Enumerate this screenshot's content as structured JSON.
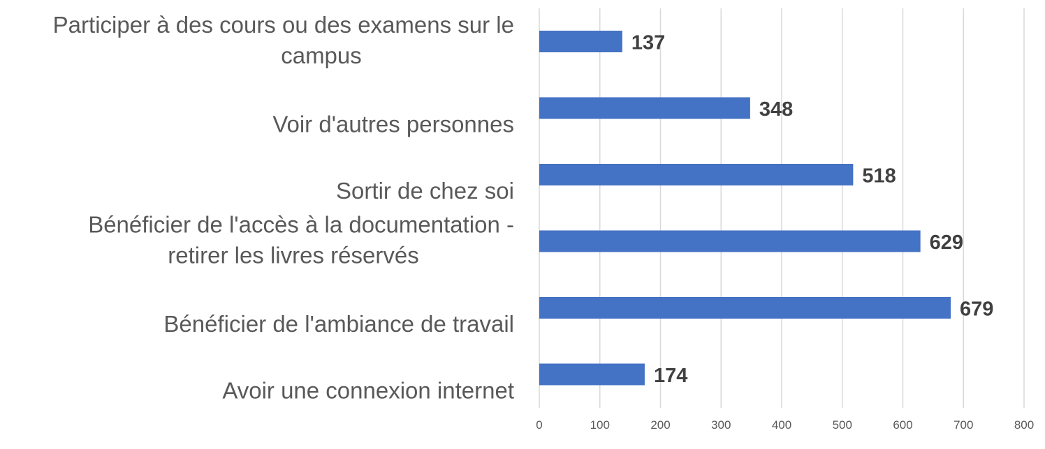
{
  "chart_data": {
    "type": "bar",
    "orientation": "horizontal",
    "categories": [
      [
        "Participer à des cours ou des examens sur le",
        "campus"
      ],
      [
        "Voir d'autres personnes"
      ],
      [
        "Sortir de chez soi"
      ],
      [
        "Bénéficier de l'accès à la documentation -",
        "retirer les livres réservés"
      ],
      [
        "Bénéficier de l'ambiance de travail"
      ],
      [
        "Avoir une connexion internet"
      ]
    ],
    "values": [
      137,
      348,
      518,
      629,
      679,
      174
    ],
    "xlim": [
      0,
      800
    ],
    "ticks": [
      0,
      100,
      200,
      300,
      400,
      500,
      600,
      700,
      800
    ],
    "grid": true,
    "legend": "none",
    "bar_color": "#4472C4"
  }
}
